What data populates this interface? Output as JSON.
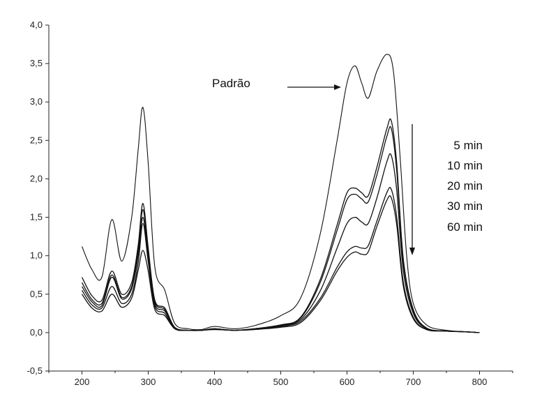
{
  "chart_data": {
    "type": "line",
    "title": "",
    "xlabel": "",
    "ylabel": "",
    "xlim": [
      150,
      850
    ],
    "ylim": [
      -0.5,
      4.0
    ],
    "x_ticks": [
      200,
      300,
      400,
      500,
      600,
      700,
      800
    ],
    "y_ticks": [
      -0.5,
      0.0,
      0.5,
      1.0,
      1.5,
      2.0,
      2.5,
      3.0,
      3.5,
      4.0
    ],
    "x_tick_labels": [
      "200",
      "300",
      "400",
      "500",
      "600",
      "700",
      "800"
    ],
    "y_tick_labels": [
      "-0,5",
      "0,0",
      "0,5",
      "1,0",
      "1,5",
      "2,0",
      "2,5",
      "3,0",
      "3,5",
      "4,0"
    ],
    "grid": false,
    "line_color": "#111111",
    "series": [
      {
        "name": "Padrão",
        "x": [
          200,
          215,
          230,
          245,
          260,
          275,
          285,
          292,
          300,
          310,
          325,
          340,
          360,
          380,
          400,
          430,
          460,
          500,
          530,
          560,
          585,
          600,
          612,
          622,
          632,
          645,
          660,
          670,
          680,
          690,
          700,
          720,
          750,
          780,
          800
        ],
        "y": [
          1.12,
          0.82,
          0.72,
          1.47,
          0.93,
          1.5,
          2.4,
          2.93,
          2.2,
          0.85,
          0.55,
          0.12,
          0.05,
          0.04,
          0.08,
          0.05,
          0.09,
          0.22,
          0.45,
          1.3,
          2.5,
          3.25,
          3.47,
          3.25,
          3.05,
          3.4,
          3.62,
          3.4,
          2.3,
          1.0,
          0.38,
          0.1,
          0.03,
          0.01,
          0.0
        ]
      },
      {
        "name": "5 min",
        "x": [
          200,
          215,
          230,
          245,
          260,
          275,
          285,
          292,
          300,
          310,
          325,
          340,
          360,
          380,
          400,
          430,
          460,
          500,
          530,
          560,
          585,
          600,
          612,
          622,
          632,
          645,
          660,
          667,
          675,
          685,
          700,
          720,
          750,
          780,
          800
        ],
        "y": [
          0.72,
          0.48,
          0.42,
          0.8,
          0.5,
          0.65,
          1.15,
          1.68,
          1.1,
          0.42,
          0.32,
          0.07,
          0.03,
          0.03,
          0.05,
          0.03,
          0.05,
          0.1,
          0.2,
          0.7,
          1.4,
          1.82,
          1.88,
          1.82,
          1.78,
          2.15,
          2.65,
          2.75,
          2.2,
          0.95,
          0.3,
          0.06,
          0.02,
          0.01,
          0.0
        ]
      },
      {
        "name": "10 min",
        "x": [
          200,
          215,
          230,
          245,
          260,
          275,
          285,
          292,
          300,
          310,
          325,
          340,
          360,
          380,
          400,
          430,
          460,
          500,
          530,
          560,
          585,
          600,
          612,
          622,
          632,
          645,
          660,
          667,
          675,
          685,
          700,
          720,
          750,
          780,
          800
        ],
        "y": [
          0.65,
          0.43,
          0.38,
          0.75,
          0.46,
          0.6,
          1.08,
          1.6,
          1.04,
          0.4,
          0.3,
          0.06,
          0.03,
          0.03,
          0.05,
          0.03,
          0.05,
          0.1,
          0.19,
          0.66,
          1.33,
          1.73,
          1.8,
          1.74,
          1.7,
          2.05,
          2.55,
          2.65,
          2.1,
          0.9,
          0.28,
          0.06,
          0.02,
          0.01,
          0.0
        ]
      },
      {
        "name": "20 min",
        "x": [
          200,
          215,
          230,
          245,
          260,
          275,
          285,
          292,
          300,
          310,
          325,
          340,
          360,
          380,
          400,
          430,
          460,
          500,
          530,
          560,
          585,
          600,
          612,
          622,
          632,
          645,
          660,
          667,
          675,
          685,
          700,
          720,
          750,
          780,
          800
        ],
        "y": [
          0.6,
          0.4,
          0.35,
          0.72,
          0.44,
          0.57,
          1.02,
          1.5,
          0.98,
          0.37,
          0.28,
          0.06,
          0.03,
          0.03,
          0.05,
          0.03,
          0.05,
          0.09,
          0.17,
          0.55,
          1.1,
          1.42,
          1.5,
          1.44,
          1.42,
          1.75,
          2.22,
          2.3,
          1.85,
          0.8,
          0.25,
          0.05,
          0.02,
          0.01,
          0.0
        ]
      },
      {
        "name": "30 min",
        "x": [
          200,
          215,
          230,
          245,
          260,
          275,
          285,
          292,
          300,
          310,
          325,
          340,
          360,
          380,
          400,
          430,
          460,
          500,
          530,
          560,
          585,
          600,
          612,
          622,
          632,
          645,
          660,
          667,
          675,
          685,
          700,
          720,
          750,
          780,
          800
        ],
        "y": [
          0.55,
          0.36,
          0.32,
          0.6,
          0.38,
          0.5,
          0.92,
          1.42,
          0.92,
          0.34,
          0.25,
          0.05,
          0.03,
          0.03,
          0.04,
          0.03,
          0.04,
          0.08,
          0.15,
          0.45,
          0.85,
          1.05,
          1.12,
          1.1,
          1.13,
          1.45,
          1.82,
          1.86,
          1.5,
          0.65,
          0.2,
          0.04,
          0.02,
          0.01,
          0.0
        ]
      },
      {
        "name": "60 min",
        "x": [
          200,
          215,
          230,
          245,
          260,
          275,
          285,
          292,
          300,
          310,
          325,
          340,
          360,
          380,
          400,
          430,
          460,
          500,
          530,
          560,
          585,
          600,
          612,
          622,
          632,
          645,
          660,
          667,
          675,
          685,
          700,
          720,
          750,
          780,
          800
        ],
        "y": [
          0.5,
          0.32,
          0.28,
          0.5,
          0.33,
          0.45,
          0.82,
          1.07,
          0.8,
          0.3,
          0.22,
          0.05,
          0.03,
          0.03,
          0.04,
          0.03,
          0.04,
          0.07,
          0.13,
          0.42,
          0.8,
          0.98,
          1.05,
          1.02,
          1.05,
          1.38,
          1.72,
          1.75,
          1.4,
          0.6,
          0.18,
          0.04,
          0.02,
          0.01,
          0.0
        ]
      }
    ],
    "annotations": {
      "standard_label": "Padrão",
      "time_labels": [
        "5 min",
        "10 min",
        "20 min",
        "30 min",
        "60 min"
      ],
      "trend_arrow": "down"
    }
  }
}
